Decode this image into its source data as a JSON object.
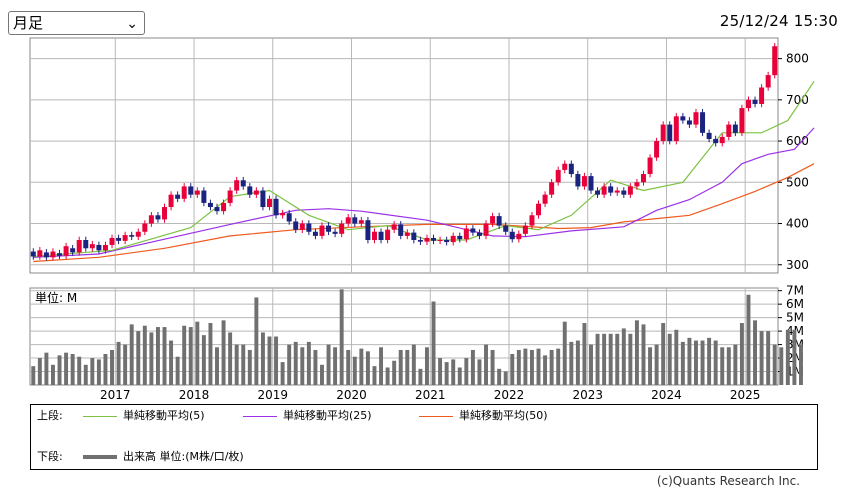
{
  "controls": {
    "period_selected": "月足",
    "timestamp": "25/12/24 15:30"
  },
  "chart_data": {
    "type": "candlestick",
    "x_ticks": [
      "2017",
      "2018",
      "2019",
      "2020",
      "2021",
      "2022",
      "2023",
      "2024",
      "2025"
    ],
    "price_axis": {
      "ylim": [
        280,
        850
      ],
      "ticks": [
        300,
        400,
        500,
        600,
        700,
        800
      ]
    },
    "volume_axis": {
      "label": "単位: M",
      "ylim": [
        0,
        7.2
      ],
      "ticks": [
        1,
        2,
        3,
        4,
        5,
        6,
        7
      ],
      "tick_labels": [
        "1M",
        "2M",
        "3M",
        "4M",
        "5M",
        "6M",
        "7M"
      ]
    },
    "colors": {
      "up": "#e8003a",
      "down": "#1a237e",
      "ma5": "#7cc242",
      "ma25": "#9b30e8",
      "ma50": "#ef5a1e",
      "volume": "#707070",
      "grid": "#b8b8b8"
    },
    "price_series": [
      {
        "o": 332,
        "c": 320
      },
      {
        "o": 320,
        "c": 335
      },
      {
        "o": 330,
        "c": 318
      },
      {
        "o": 318,
        "c": 332
      },
      {
        "o": 328,
        "c": 322
      },
      {
        "o": 322,
        "c": 345
      },
      {
        "o": 340,
        "c": 330
      },
      {
        "o": 330,
        "c": 360
      },
      {
        "o": 360,
        "c": 340
      },
      {
        "o": 340,
        "c": 350
      },
      {
        "o": 348,
        "c": 335
      },
      {
        "o": 335,
        "c": 348
      },
      {
        "o": 348,
        "c": 365
      },
      {
        "o": 365,
        "c": 358
      },
      {
        "o": 358,
        "c": 372
      },
      {
        "o": 372,
        "c": 368
      },
      {
        "o": 368,
        "c": 380
      },
      {
        "o": 380,
        "c": 400
      },
      {
        "o": 400,
        "c": 420
      },
      {
        "o": 420,
        "c": 410
      },
      {
        "o": 410,
        "c": 440
      },
      {
        "o": 440,
        "c": 470
      },
      {
        "o": 470,
        "c": 460
      },
      {
        "o": 460,
        "c": 490
      },
      {
        "o": 490,
        "c": 470
      },
      {
        "o": 470,
        "c": 480
      },
      {
        "o": 480,
        "c": 450
      },
      {
        "o": 450,
        "c": 440
      },
      {
        "o": 440,
        "c": 430
      },
      {
        "o": 430,
        "c": 450
      },
      {
        "o": 450,
        "c": 480
      },
      {
        "o": 480,
        "c": 505
      },
      {
        "o": 505,
        "c": 490
      },
      {
        "o": 490,
        "c": 470
      },
      {
        "o": 470,
        "c": 480
      },
      {
        "o": 480,
        "c": 440
      },
      {
        "o": 440,
        "c": 460
      },
      {
        "o": 460,
        "c": 420
      },
      {
        "o": 420,
        "c": 425
      },
      {
        "o": 425,
        "c": 405
      },
      {
        "o": 405,
        "c": 385
      },
      {
        "o": 385,
        "c": 400
      },
      {
        "o": 400,
        "c": 380
      },
      {
        "o": 380,
        "c": 370
      },
      {
        "o": 370,
        "c": 395
      },
      {
        "o": 395,
        "c": 380
      },
      {
        "o": 380,
        "c": 375
      },
      {
        "o": 375,
        "c": 400
      },
      {
        "o": 400,
        "c": 415
      },
      {
        "o": 415,
        "c": 400
      },
      {
        "o": 400,
        "c": 408
      },
      {
        "o": 408,
        "c": 360
      },
      {
        "o": 360,
        "c": 380
      },
      {
        "o": 380,
        "c": 360
      },
      {
        "o": 360,
        "c": 385
      },
      {
        "o": 385,
        "c": 398
      },
      {
        "o": 398,
        "c": 370
      },
      {
        "o": 370,
        "c": 378
      },
      {
        "o": 378,
        "c": 360
      },
      {
        "o": 360,
        "c": 356
      },
      {
        "o": 356,
        "c": 365
      },
      {
        "o": 365,
        "c": 358
      },
      {
        "o": 358,
        "c": 360
      },
      {
        "o": 360,
        "c": 355
      },
      {
        "o": 355,
        "c": 370
      },
      {
        "o": 370,
        "c": 362
      },
      {
        "o": 362,
        "c": 388
      },
      {
        "o": 388,
        "c": 378
      },
      {
        "o": 378,
        "c": 370
      },
      {
        "o": 370,
        "c": 400
      },
      {
        "o": 400,
        "c": 418
      },
      {
        "o": 418,
        "c": 395
      },
      {
        "o": 395,
        "c": 380
      },
      {
        "o": 380,
        "c": 362
      },
      {
        "o": 362,
        "c": 375
      },
      {
        "o": 375,
        "c": 395
      },
      {
        "o": 395,
        "c": 420
      },
      {
        "o": 420,
        "c": 448
      },
      {
        "o": 448,
        "c": 470
      },
      {
        "o": 470,
        "c": 500
      },
      {
        "o": 500,
        "c": 530
      },
      {
        "o": 530,
        "c": 545
      },
      {
        "o": 545,
        "c": 520
      },
      {
        "o": 520,
        "c": 490
      },
      {
        "o": 490,
        "c": 515
      },
      {
        "o": 515,
        "c": 480
      },
      {
        "o": 480,
        "c": 470
      },
      {
        "o": 470,
        "c": 490
      },
      {
        "o": 490,
        "c": 475
      },
      {
        "o": 475,
        "c": 480
      },
      {
        "o": 480,
        "c": 470
      },
      {
        "o": 470,
        "c": 490
      },
      {
        "o": 490,
        "c": 500
      },
      {
        "o": 500,
        "c": 520
      },
      {
        "o": 520,
        "c": 560
      },
      {
        "o": 560,
        "c": 600
      },
      {
        "o": 600,
        "c": 640
      },
      {
        "o": 640,
        "c": 600
      },
      {
        "o": 600,
        "c": 660
      },
      {
        "o": 660,
        "c": 650
      },
      {
        "o": 650,
        "c": 640
      },
      {
        "o": 640,
        "c": 670
      },
      {
        "o": 670,
        "c": 620
      },
      {
        "o": 620,
        "c": 605
      },
      {
        "o": 605,
        "c": 595
      },
      {
        "o": 595,
        "c": 610
      },
      {
        "o": 610,
        "c": 640
      },
      {
        "o": 640,
        "c": 620
      },
      {
        "o": 620,
        "c": 680
      },
      {
        "o": 680,
        "c": 700
      },
      {
        "o": 700,
        "c": 690
      },
      {
        "o": 690,
        "c": 730
      },
      {
        "o": 730,
        "c": 760
      },
      {
        "o": 760,
        "c": 830
      }
    ],
    "volume_series": [
      1.4,
      2.0,
      2.4,
      1.5,
      2.2,
      2.4,
      2.3,
      2.1,
      1.5,
      2.0,
      1.9,
      2.3,
      2.6,
      3.2,
      3.0,
      4.5,
      4.0,
      4.4,
      3.9,
      4.3,
      4.3,
      3.3,
      2.1,
      4.4,
      4.3,
      4.7,
      3.7,
      4.6,
      2.8,
      4.8,
      3.9,
      3.0,
      3.0,
      2.6,
      6.5,
      3.9,
      3.6,
      3.6,
      1.7,
      3.0,
      3.2,
      2.8,
      3.2,
      2.6,
      1.5,
      3.0,
      2.8,
      7.1,
      2.6,
      2.1,
      2.7,
      2.5,
      1.4,
      2.8,
      1.3,
      1.8,
      2.6,
      2.6,
      3.0,
      1.2,
      2.8,
      6.2,
      2.0,
      1.7,
      1.9,
      1.3,
      2.0,
      2.6,
      1.9,
      3.0,
      2.6,
      1.2,
      1.0,
      2.3,
      2.6,
      2.7,
      2.6,
      2.7,
      2.2,
      2.6,
      2.7,
      4.7,
      3.2,
      3.3,
      4.6,
      3.0,
      3.8,
      3.8,
      3.8,
      3.8,
      4.2,
      3.8,
      4.8,
      4.5,
      2.8,
      3.0,
      4.6,
      3.8,
      4.1,
      3.2,
      3.5,
      3.3,
      3.3,
      3.5,
      3.3,
      2.8,
      2.8,
      3.0,
      4.6,
      6.7,
      4.8,
      4.0,
      4.0,
      3.0,
      2.8,
      4.1,
      4.1,
      3.0
    ],
    "ma5": [
      [
        0,
        320
      ],
      [
        12,
        335
      ],
      [
        24,
        390
      ],
      [
        30,
        465
      ],
      [
        36,
        480
      ],
      [
        42,
        420
      ],
      [
        48,
        385
      ],
      [
        54,
        395
      ],
      [
        60,
        360
      ],
      [
        66,
        360
      ],
      [
        72,
        395
      ],
      [
        77,
        385
      ],
      [
        82,
        420
      ],
      [
        88,
        505
      ],
      [
        93,
        480
      ],
      [
        99,
        500
      ],
      [
        105,
        620
      ],
      [
        111,
        620
      ],
      [
        115,
        650
      ],
      [
        119,
        745
      ]
    ],
    "ma25": [
      [
        0,
        318
      ],
      [
        10,
        326
      ],
      [
        20,
        362
      ],
      [
        30,
        398
      ],
      [
        40,
        432
      ],
      [
        45,
        436
      ],
      [
        50,
        430
      ],
      [
        60,
        408
      ],
      [
        70,
        370
      ],
      [
        75,
        368
      ],
      [
        82,
        382
      ],
      [
        90,
        392
      ],
      [
        95,
        432
      ],
      [
        100,
        458
      ],
      [
        105,
        500
      ],
      [
        108,
        545
      ],
      [
        112,
        568
      ],
      [
        116,
        580
      ],
      [
        119,
        632
      ]
    ],
    "ma50": [
      [
        0,
        308
      ],
      [
        10,
        318
      ],
      [
        20,
        340
      ],
      [
        30,
        370
      ],
      [
        40,
        385
      ],
      [
        50,
        392
      ],
      [
        60,
        398
      ],
      [
        70,
        398
      ],
      [
        75,
        393
      ],
      [
        80,
        388
      ],
      [
        85,
        390
      ],
      [
        90,
        404
      ],
      [
        95,
        412
      ],
      [
        100,
        420
      ],
      [
        105,
        448
      ],
      [
        110,
        478
      ],
      [
        115,
        512
      ],
      [
        119,
        545
      ]
    ],
    "legend": {
      "upper_label": "上段:",
      "lower_label": "下段:",
      "ma5": "単純移動平均(5)",
      "ma25": "単純移動平均(25)",
      "ma50": "単純移動平均(50)",
      "volume": "出来高 単位:(M株/口/枚)"
    }
  },
  "copyright": "(c)Quants Research Inc."
}
